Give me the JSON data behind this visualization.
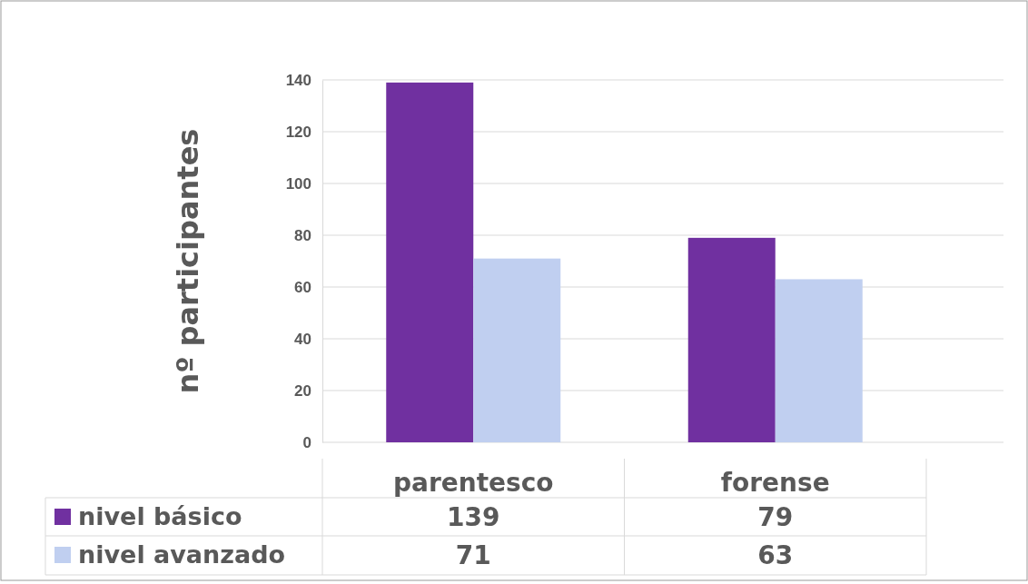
{
  "chart_data": {
    "type": "bar",
    "ylabel": "nº participantes",
    "categories": [
      "parentesco",
      "forense"
    ],
    "series": [
      {
        "name": "nivel básico",
        "color": "#7030a0",
        "values": [
          139,
          79
        ]
      },
      {
        "name": "nivel avanzado",
        "color": "#c0cff0",
        "values": [
          71,
          63
        ]
      }
    ],
    "ylim": [
      0,
      140
    ],
    "yticks": [
      0,
      20,
      40,
      60,
      80,
      100,
      120,
      140
    ],
    "grid": "y",
    "legend": "bottom",
    "data_labels": true
  }
}
